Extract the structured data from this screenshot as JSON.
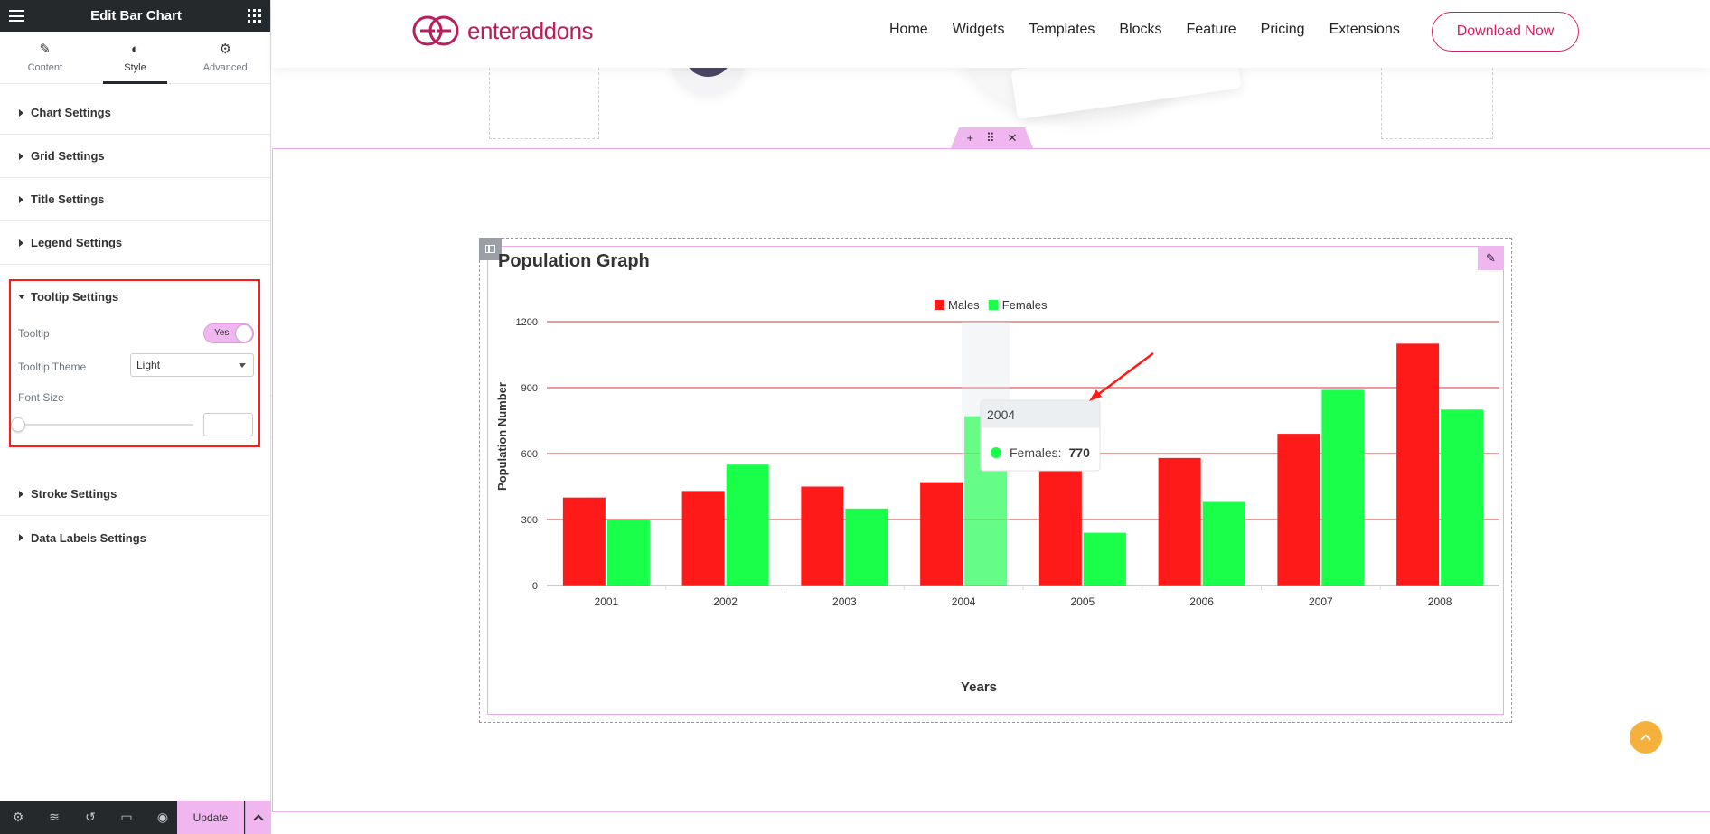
{
  "panel": {
    "title": "Edit Bar Chart",
    "tabs": [
      {
        "label": "Content",
        "icon": "pencil-icon"
      },
      {
        "label": "Style",
        "icon": "contrast-icon"
      },
      {
        "label": "Advanced",
        "icon": "gear-icon"
      }
    ],
    "active_tab": "Style",
    "sections_top": [
      "Chart Settings",
      "Grid Settings",
      "Title Settings",
      "Legend Settings"
    ],
    "tooltip_section": {
      "title": "Tooltip Settings",
      "tooltip_label": "Tooltip",
      "tooltip_toggle": "Yes",
      "theme_label": "Tooltip Theme",
      "theme_value": "Light",
      "font_size_label": "Font Size",
      "font_size_value": ""
    },
    "sections_bottom": [
      "Stroke Settings",
      "Data Labels Settings"
    ],
    "footer": {
      "update_label": "Update",
      "icons": [
        "gear-icon",
        "layers-icon",
        "history-icon",
        "responsive-icon",
        "eye-icon"
      ]
    }
  },
  "site": {
    "logo_text": "enteraddons",
    "nav": [
      "Home",
      "Widgets",
      "Templates",
      "Blocks",
      "Feature",
      "Pricing",
      "Extensions"
    ],
    "download_label": "Download Now",
    "brand_color": "#d81b60"
  },
  "chart_data": {
    "type": "bar",
    "title": "Population Graph",
    "xlabel": "Years",
    "ylabel": "Population Number",
    "categories": [
      "2001",
      "2002",
      "2003",
      "2004",
      "2005",
      "2006",
      "2007",
      "2008"
    ],
    "series": [
      {
        "name": "Males",
        "color": "#ff1a1a",
        "values": [
          400,
          430,
          450,
          470,
          540,
          580,
          690,
          1100
        ]
      },
      {
        "name": "Females",
        "color": "#19ff4a",
        "values": [
          300,
          550,
          350,
          770,
          240,
          380,
          890,
          800
        ]
      }
    ],
    "ylim": [
      0,
      1200
    ],
    "yticks": [
      0,
      300,
      600,
      900,
      1200
    ],
    "grid": true,
    "grid_color": "#e03030",
    "legend": "top-center",
    "tooltip": {
      "category": "2004",
      "series": "Females",
      "label": "Females:",
      "value": "770"
    }
  }
}
